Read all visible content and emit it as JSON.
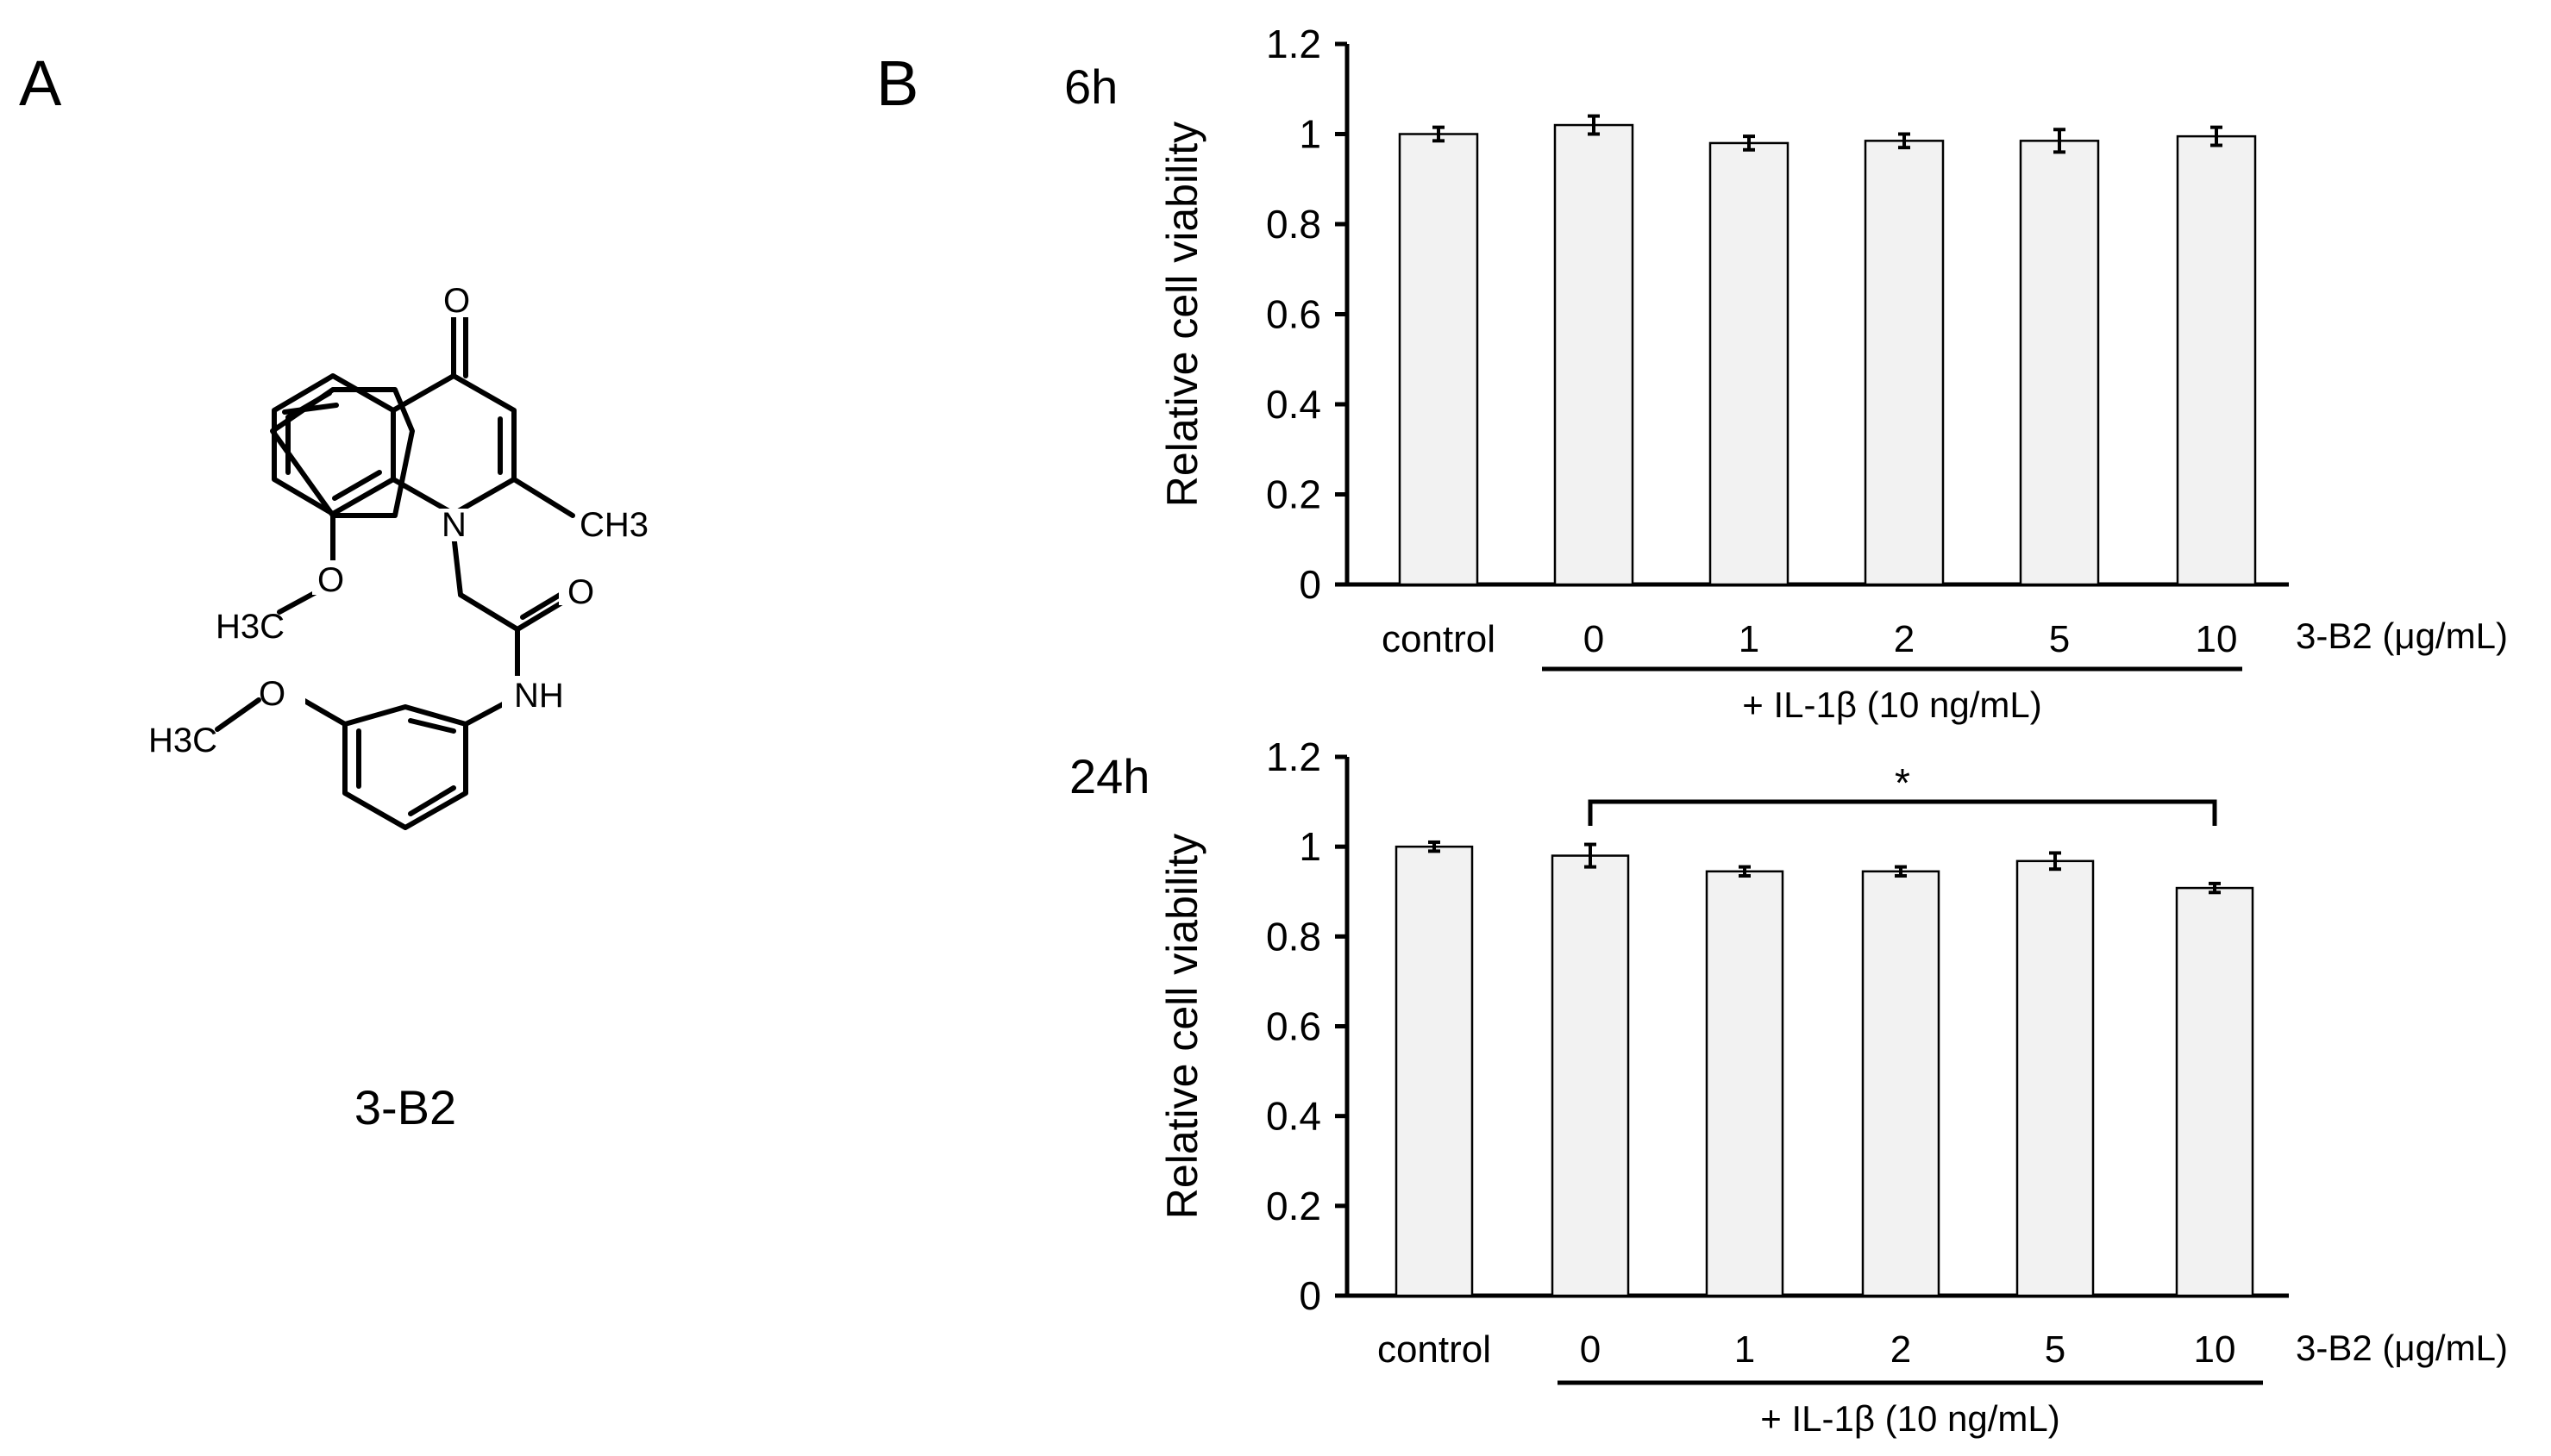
{
  "panel_a": {
    "label": "A",
    "compound_name": "3-B2",
    "atoms": {
      "oxygen_carbonyl": "O",
      "nitrogen_ring": "N",
      "methyl": "CH3",
      "methoxy_1": "H3C",
      "methoxy_1_o": "O",
      "amide_o": "O",
      "amide_nh": "NH",
      "methoxy_2": "H3C",
      "methoxy_2_o": "O"
    }
  },
  "panel_b": {
    "label": "B",
    "treatment_label": "3-B2 (μg/mL)",
    "bracket_label": "+ IL-1β (10 ng/mL)"
  },
  "chart_data": [
    {
      "type": "bar",
      "title": "6h",
      "ylabel": "Relative cell viability",
      "xlabel": "3-B2 (μg/mL)",
      "categories": [
        "control",
        "0",
        "1",
        "2",
        "5",
        "10"
      ],
      "values": [
        1.0,
        1.02,
        0.98,
        0.985,
        0.985,
        0.995
      ],
      "errors": [
        0.015,
        0.02,
        0.015,
        0.015,
        0.025,
        0.02
      ],
      "ylim": [
        0,
        1.2
      ],
      "yticks": [
        "0",
        "0.2",
        "0.4",
        "0.6",
        "0.8",
        "1",
        "1.2"
      ],
      "group_label": "+ IL-1β (10 ng/mL)",
      "significance": []
    },
    {
      "type": "bar",
      "title": "24h",
      "ylabel": "Relative cell viability",
      "xlabel": "3-B2 (μg/mL)",
      "categories": [
        "control",
        "0",
        "1",
        "2",
        "5",
        "10"
      ],
      "values": [
        1.0,
        0.98,
        0.945,
        0.945,
        0.968,
        0.908
      ],
      "errors": [
        0.01,
        0.025,
        0.01,
        0.01,
        0.018,
        0.01
      ],
      "ylim": [
        0,
        1.2
      ],
      "yticks": [
        "0",
        "0.2",
        "0.4",
        "0.6",
        "0.8",
        "1",
        "1.2"
      ],
      "group_label": "+ IL-1β (10 ng/mL)",
      "significance": [
        {
          "from": "0",
          "to": "10",
          "label": "*"
        }
      ]
    }
  ],
  "colors": {
    "bar_fill": "#f2f2f2",
    "bar_stroke": "#000000",
    "axis": "#000000"
  }
}
